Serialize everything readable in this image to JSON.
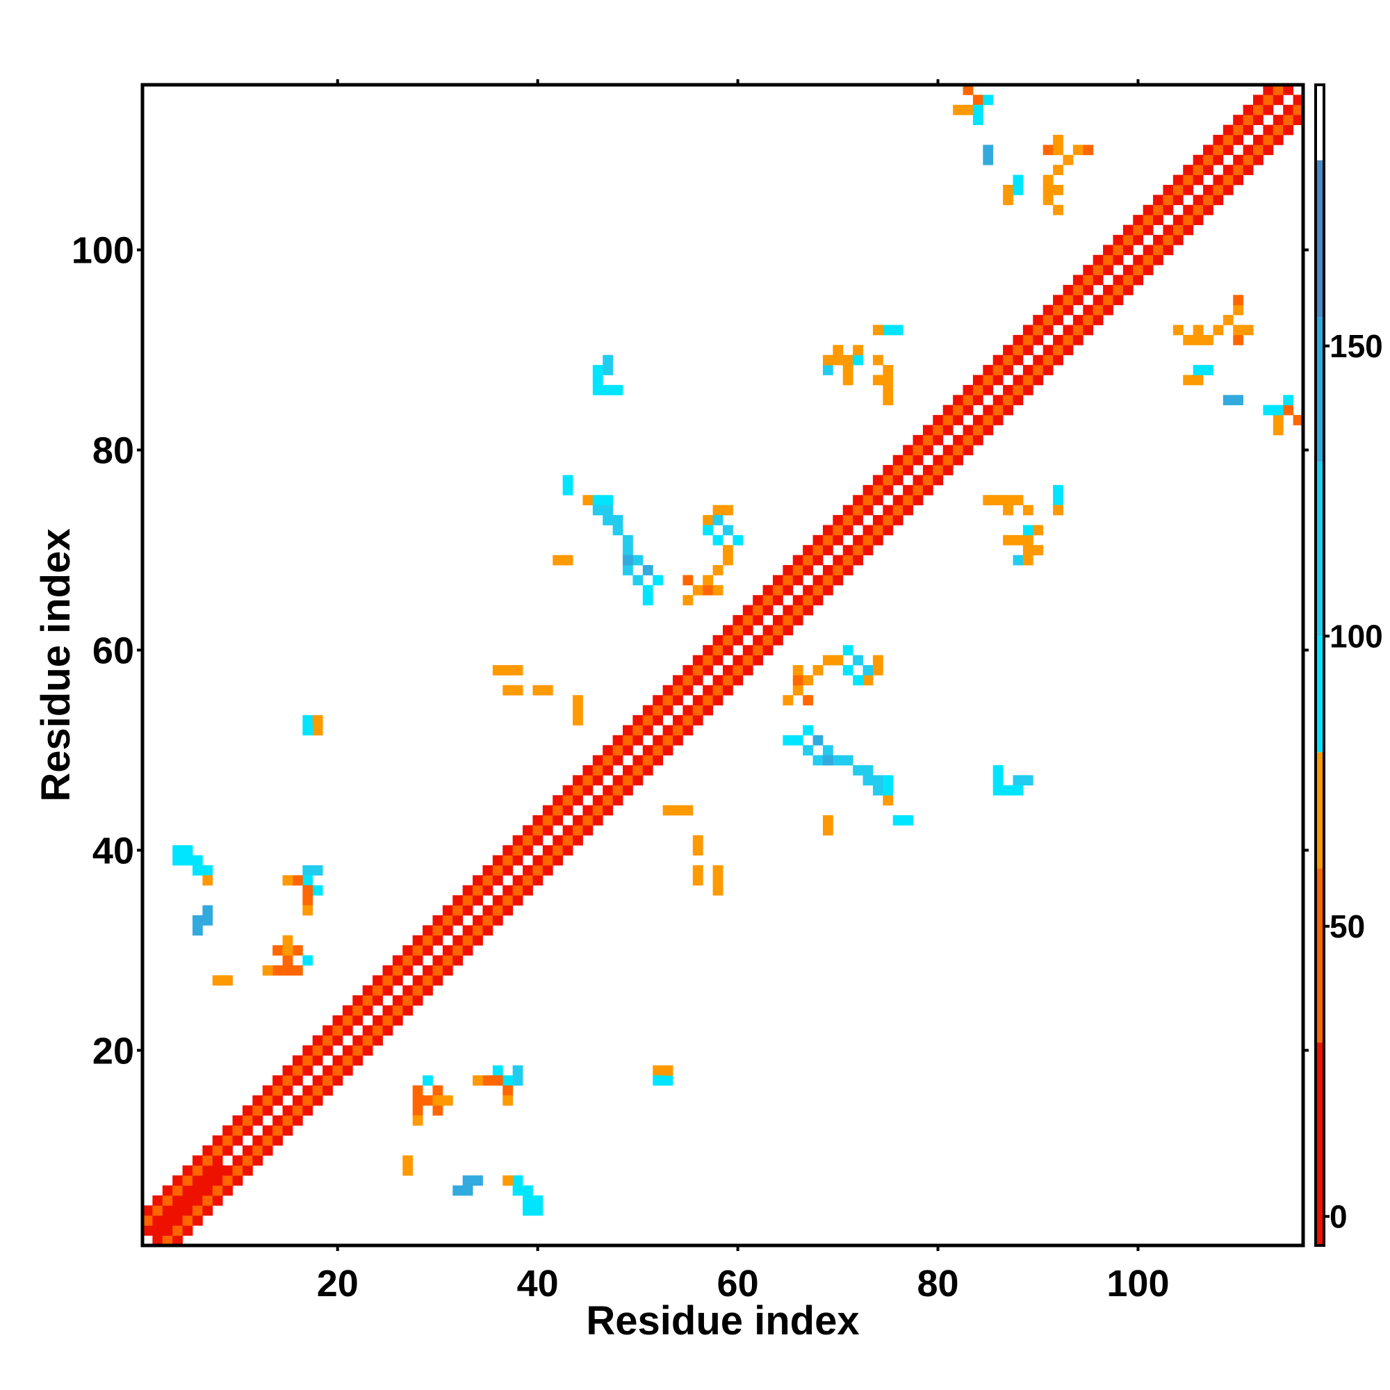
{
  "chart_data": {
    "type": "heatmap",
    "title": "",
    "xlabel": "Residue index",
    "ylabel": "Residue index",
    "xlim": [
      0.5,
      116.5
    ],
    "ylim": [
      0.5,
      116.5
    ],
    "x_ticks": [
      20,
      40,
      60,
      80,
      100
    ],
    "y_ticks": [
      20,
      40,
      60,
      80,
      100
    ],
    "colorbar": {
      "range": [
        -5,
        195
      ],
      "ticks": [
        0,
        50,
        100,
        150
      ],
      "bands": [
        {
          "from": -5,
          "to": 30,
          "color": "#ee1100"
        },
        {
          "from": 30,
          "to": 60,
          "color": "#ff6600"
        },
        {
          "from": 60,
          "to": 80,
          "color": "#ff9900"
        },
        {
          "from": 80,
          "to": 100,
          "color": "#00e5ff"
        },
        {
          "from": 100,
          "to": 130,
          "color": "#22ccee"
        },
        {
          "from": 130,
          "to": 155,
          "color": "#33aadd"
        },
        {
          "from": 155,
          "to": 182,
          "color": "#4a8ac6"
        },
        {
          "from": 182,
          "to": 195,
          "color": "#ffffff"
        }
      ]
    },
    "diagonal_band": {
      "offsets": [
        1,
        2,
        3
      ],
      "values_by_offset": {
        "1": 20,
        "2": 45,
        "3": 20
      }
    },
    "cells": [
      [
        2,
        2,
        10
      ],
      [
        3,
        3,
        10
      ],
      [
        4,
        4,
        15
      ],
      [
        5,
        5,
        15
      ],
      [
        6,
        6,
        15
      ],
      [
        7,
        7,
        15
      ],
      [
        8,
        8,
        15
      ],
      [
        14,
        28,
        30
      ],
      [
        15,
        28,
        30
      ],
      [
        16,
        28,
        30
      ],
      [
        15,
        29,
        35
      ],
      [
        14,
        30,
        35
      ],
      [
        16,
        30,
        45
      ],
      [
        17,
        29,
        90
      ],
      [
        4,
        40,
        95
      ],
      [
        5,
        40,
        95
      ],
      [
        6,
        39,
        95
      ],
      [
        7,
        38,
        95
      ],
      [
        5,
        39,
        110
      ],
      [
        6,
        38,
        110
      ],
      [
        7,
        37,
        70
      ],
      [
        6,
        33,
        150
      ],
      [
        6,
        32,
        150
      ],
      [
        17,
        38,
        95
      ],
      [
        18,
        38,
        95
      ],
      [
        17,
        37,
        95
      ],
      [
        16,
        37,
        50
      ],
      [
        18,
        36,
        90
      ],
      [
        17,
        35,
        60
      ],
      [
        17,
        34,
        60
      ],
      [
        8,
        27,
        70
      ],
      [
        9,
        27,
        70
      ],
      [
        17,
        53,
        90
      ],
      [
        18,
        53,
        70
      ],
      [
        33,
        7,
        150
      ],
      [
        34,
        7,
        150
      ],
      [
        37,
        7,
        70
      ],
      [
        38,
        6,
        95
      ],
      [
        39,
        5,
        95
      ],
      [
        39,
        4,
        95
      ],
      [
        40,
        4,
        95
      ],
      [
        27,
        9,
        70
      ],
      [
        27,
        8,
        70
      ],
      [
        36,
        18,
        95
      ],
      [
        37,
        17,
        95
      ],
      [
        38,
        17,
        110
      ],
      [
        38,
        18,
        110
      ],
      [
        36,
        17,
        55
      ],
      [
        35,
        17,
        55
      ],
      [
        37,
        15,
        60
      ],
      [
        52,
        18,
        70
      ],
      [
        52,
        17,
        95
      ],
      [
        28,
        13,
        60
      ],
      [
        30,
        15,
        60
      ],
      [
        31,
        15,
        60
      ],
      [
        36,
        58,
        70
      ],
      [
        37,
        58,
        70
      ],
      [
        38,
        58,
        70
      ],
      [
        37,
        56,
        60
      ],
      [
        38,
        56,
        60
      ],
      [
        42,
        69,
        60
      ],
      [
        43,
        69,
        60
      ],
      [
        53,
        44,
        60
      ],
      [
        54,
        44,
        60
      ],
      [
        55,
        44,
        60
      ],
      [
        56,
        41,
        70
      ],
      [
        56,
        40,
        70
      ],
      [
        43,
        77,
        90
      ],
      [
        43,
        76,
        95
      ],
      [
        45,
        75,
        70
      ],
      [
        46,
        75,
        95
      ],
      [
        47,
        75,
        95
      ],
      [
        46,
        74,
        110
      ],
      [
        47,
        74,
        110
      ],
      [
        48,
        73,
        110
      ],
      [
        48,
        72,
        110
      ],
      [
        49,
        71,
        95
      ],
      [
        49,
        70,
        110
      ],
      [
        50,
        69,
        110
      ],
      [
        51,
        68,
        150
      ],
      [
        52,
        67,
        95
      ],
      [
        47,
        89,
        110
      ],
      [
        47,
        88,
        110
      ],
      [
        47,
        86,
        95
      ],
      [
        48,
        86,
        95
      ],
      [
        57,
        73,
        60
      ],
      [
        58,
        74,
        60
      ],
      [
        57,
        72,
        95
      ],
      [
        58,
        71,
        95
      ],
      [
        59,
        72,
        110
      ],
      [
        60,
        71,
        110
      ],
      [
        55,
        67,
        55
      ],
      [
        56,
        66,
        60
      ],
      [
        57,
        66,
        55
      ],
      [
        55,
        65,
        70
      ],
      [
        66,
        58,
        60
      ],
      [
        67,
        57,
        60
      ],
      [
        68,
        58,
        70
      ],
      [
        69,
        59,
        60
      ],
      [
        70,
        59,
        70
      ],
      [
        71,
        60,
        95
      ],
      [
        72,
        59,
        110
      ],
      [
        73,
        58,
        110
      ],
      [
        73,
        57,
        60
      ],
      [
        74,
        59,
        70
      ],
      [
        65,
        51,
        95
      ],
      [
        66,
        51,
        95
      ],
      [
        67,
        50,
        110
      ],
      [
        68,
        49,
        110
      ],
      [
        69,
        49,
        150
      ],
      [
        71,
        49,
        110
      ],
      [
        72,
        48,
        110
      ],
      [
        73,
        47,
        110
      ],
      [
        74,
        46,
        110
      ],
      [
        75,
        45,
        70
      ],
      [
        76,
        43,
        95
      ],
      [
        86,
        47,
        95
      ],
      [
        86,
        46,
        95
      ],
      [
        87,
        46,
        95
      ],
      [
        88,
        46,
        95
      ],
      [
        70,
        90,
        60
      ],
      [
        71,
        89,
        60
      ],
      [
        74,
        89,
        60
      ],
      [
        74,
        87,
        60
      ],
      [
        75,
        92,
        95
      ],
      [
        76,
        92,
        95
      ],
      [
        74,
        92,
        60
      ],
      [
        85,
        75,
        70
      ],
      [
        86,
        75,
        70
      ],
      [
        87,
        75,
        70
      ],
      [
        88,
        75,
        60
      ],
      [
        89,
        72,
        95
      ],
      [
        90,
        72,
        60
      ],
      [
        87,
        71,
        70
      ],
      [
        88,
        71,
        70
      ],
      [
        89,
        70,
        70
      ],
      [
        88,
        69,
        110
      ],
      [
        89,
        69,
        60
      ],
      [
        83,
        116,
        55
      ],
      [
        84,
        115,
        95
      ],
      [
        85,
        115,
        95
      ],
      [
        82,
        114,
        70
      ],
      [
        83,
        114,
        95
      ],
      [
        85,
        109,
        150
      ],
      [
        87,
        106,
        60
      ],
      [
        88,
        106,
        60
      ],
      [
        88,
        107,
        95
      ],
      [
        91,
        110,
        55
      ],
      [
        92,
        110,
        60
      ],
      [
        93,
        109,
        60
      ],
      [
        92,
        111,
        60
      ],
      [
        94,
        110,
        60
      ],
      [
        95,
        110,
        55
      ],
      [
        104,
        92,
        60
      ],
      [
        105,
        91,
        60
      ],
      [
        106,
        91,
        60
      ],
      [
        107,
        91,
        60
      ],
      [
        108,
        92,
        60
      ],
      [
        109,
        93,
        60
      ],
      [
        106,
        92,
        60
      ],
      [
        105,
        87,
        70
      ],
      [
        106,
        88,
        95
      ],
      [
        110,
        85,
        150
      ],
      [
        113,
        84,
        95
      ],
      [
        114,
        84,
        95
      ],
      [
        114,
        83,
        60
      ],
      [
        115,
        84,
        30
      ]
    ]
  }
}
